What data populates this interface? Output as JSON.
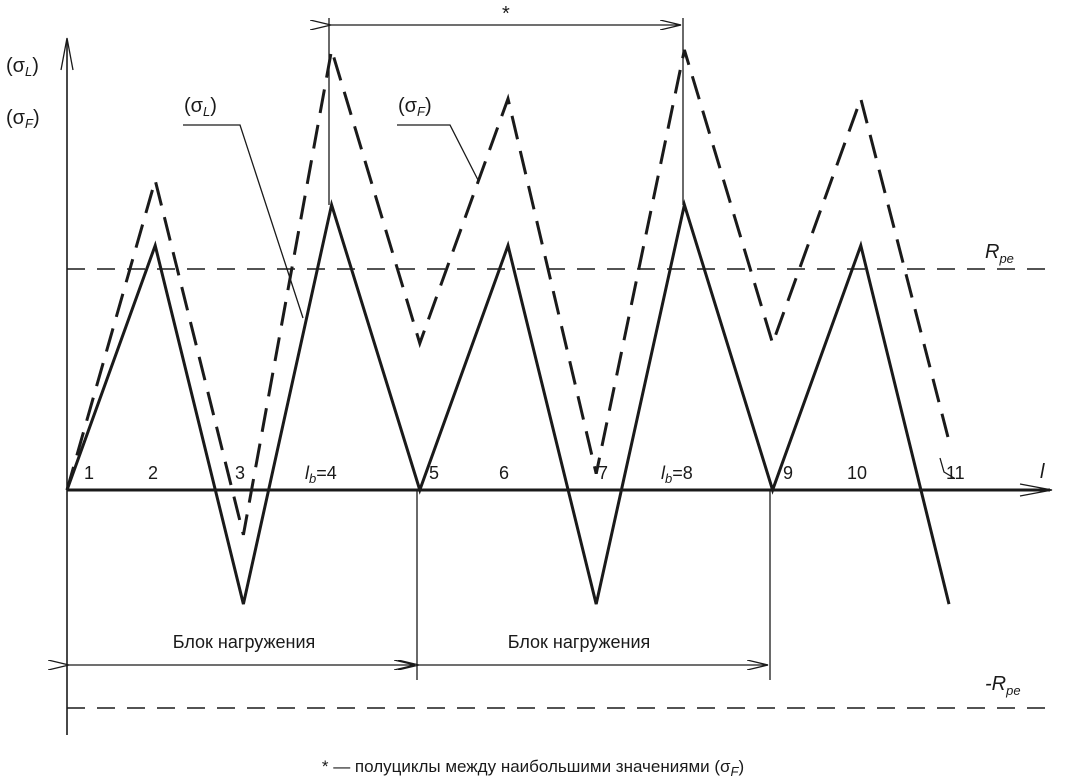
{
  "y_axis_labels": {
    "sigma_L": {
      "open": "(σ",
      "sub": "L",
      "close": ")"
    },
    "sigma_F": {
      "open": "(σ",
      "sub": "F",
      "close": ")"
    }
  },
  "curve_labels": {
    "sigma_L": {
      "open": "(σ",
      "sub": "L",
      "close": ")"
    },
    "sigma_F": {
      "open": "(σ",
      "sub": "F",
      "close": ")"
    }
  },
  "x_axis_label": "l",
  "x_ticks": [
    {
      "text": "1"
    },
    {
      "text": "2"
    },
    {
      "text": "3"
    },
    {
      "text": "l",
      "sub": "b",
      "rest": "=4"
    },
    {
      "text": "5"
    },
    {
      "text": "6"
    },
    {
      "text": "7"
    },
    {
      "text": "l",
      "sub": "b",
      "rest": "=8"
    },
    {
      "text": "9"
    },
    {
      "text": "10"
    },
    {
      "text": "11"
    }
  ],
  "rpe_label": {
    "main": "R",
    "sub": "pe"
  },
  "neg_rpe_label": {
    "main": "-R",
    "sub": "pe"
  },
  "half_cycle_marker": "*",
  "block_labels": [
    "Блок нагружения",
    "Блок нагружения"
  ],
  "footnote": {
    "text": "* — полуциклы между наибольшими значениями (σ",
    "sub": "F",
    "close": ")"
  },
  "series": {
    "sigma_L": {
      "style": "solid",
      "values": [
        0,
        3.0,
        -1.4,
        3.5,
        0,
        3.0,
        -1.4,
        3.5,
        0,
        3.0,
        -1.4
      ]
    },
    "sigma_F": {
      "style": "dashed",
      "values": [
        0,
        3.8,
        -0.55,
        5.4,
        1.8,
        4.8,
        0.2,
        5.4,
        1.8,
        4.8,
        0.6
      ]
    }
  },
  "rpe_level": 2.7
}
